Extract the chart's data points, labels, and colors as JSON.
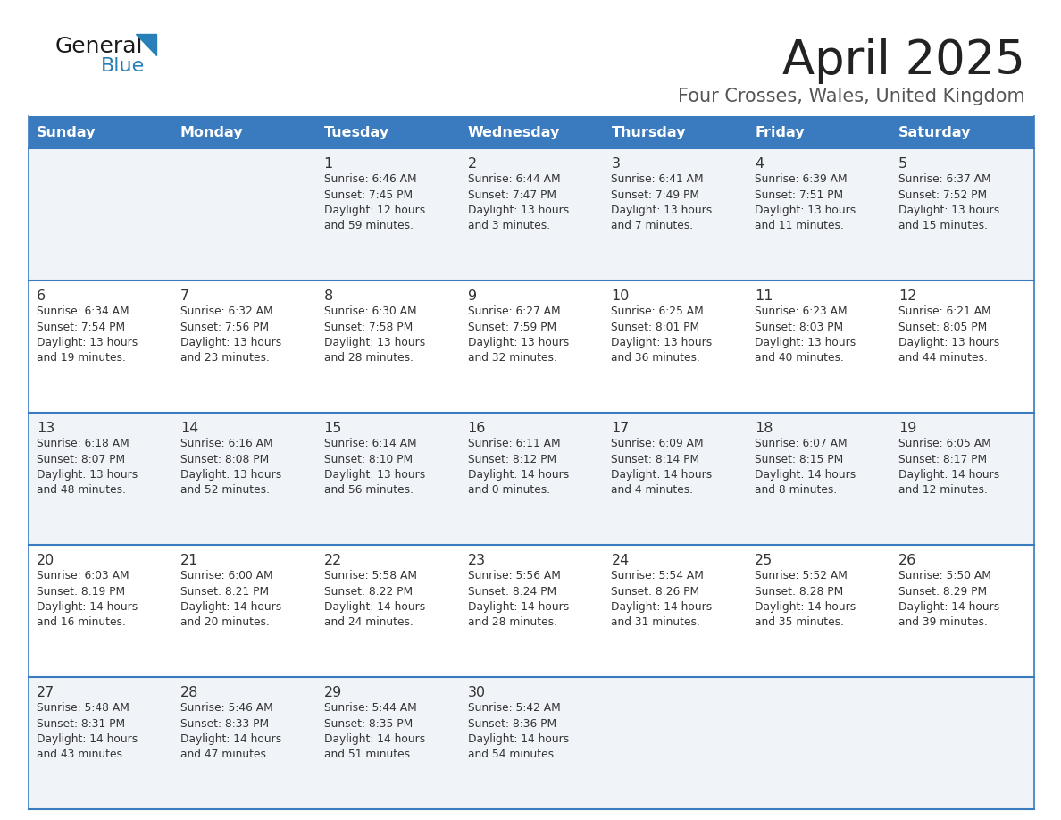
{
  "title": "April 2025",
  "subtitle": "Four Crosses, Wales, United Kingdom",
  "days_of_week": [
    "Sunday",
    "Monday",
    "Tuesday",
    "Wednesday",
    "Thursday",
    "Friday",
    "Saturday"
  ],
  "header_bg": "#3a7abf",
  "header_text_color": "#FFFFFF",
  "cell_bg_light": "#f0f4f8",
  "cell_bg_white": "#FFFFFF",
  "border_color": "#3a7abf",
  "text_color": "#333333",
  "title_color": "#222222",
  "subtitle_color": "#555555",
  "logo_black": "#1a1a1a",
  "logo_blue": "#2980B9",
  "calendar": [
    [
      {
        "day": "",
        "sunrise": "",
        "sunset": "",
        "daylight": ""
      },
      {
        "day": "",
        "sunrise": "",
        "sunset": "",
        "daylight": ""
      },
      {
        "day": "1",
        "sunrise": "Sunrise: 6:46 AM",
        "sunset": "Sunset: 7:45 PM",
        "daylight": "Daylight: 12 hours\nand 59 minutes."
      },
      {
        "day": "2",
        "sunrise": "Sunrise: 6:44 AM",
        "sunset": "Sunset: 7:47 PM",
        "daylight": "Daylight: 13 hours\nand 3 minutes."
      },
      {
        "day": "3",
        "sunrise": "Sunrise: 6:41 AM",
        "sunset": "Sunset: 7:49 PM",
        "daylight": "Daylight: 13 hours\nand 7 minutes."
      },
      {
        "day": "4",
        "sunrise": "Sunrise: 6:39 AM",
        "sunset": "Sunset: 7:51 PM",
        "daylight": "Daylight: 13 hours\nand 11 minutes."
      },
      {
        "day": "5",
        "sunrise": "Sunrise: 6:37 AM",
        "sunset": "Sunset: 7:52 PM",
        "daylight": "Daylight: 13 hours\nand 15 minutes."
      }
    ],
    [
      {
        "day": "6",
        "sunrise": "Sunrise: 6:34 AM",
        "sunset": "Sunset: 7:54 PM",
        "daylight": "Daylight: 13 hours\nand 19 minutes."
      },
      {
        "day": "7",
        "sunrise": "Sunrise: 6:32 AM",
        "sunset": "Sunset: 7:56 PM",
        "daylight": "Daylight: 13 hours\nand 23 minutes."
      },
      {
        "day": "8",
        "sunrise": "Sunrise: 6:30 AM",
        "sunset": "Sunset: 7:58 PM",
        "daylight": "Daylight: 13 hours\nand 28 minutes."
      },
      {
        "day": "9",
        "sunrise": "Sunrise: 6:27 AM",
        "sunset": "Sunset: 7:59 PM",
        "daylight": "Daylight: 13 hours\nand 32 minutes."
      },
      {
        "day": "10",
        "sunrise": "Sunrise: 6:25 AM",
        "sunset": "Sunset: 8:01 PM",
        "daylight": "Daylight: 13 hours\nand 36 minutes."
      },
      {
        "day": "11",
        "sunrise": "Sunrise: 6:23 AM",
        "sunset": "Sunset: 8:03 PM",
        "daylight": "Daylight: 13 hours\nand 40 minutes."
      },
      {
        "day": "12",
        "sunrise": "Sunrise: 6:21 AM",
        "sunset": "Sunset: 8:05 PM",
        "daylight": "Daylight: 13 hours\nand 44 minutes."
      }
    ],
    [
      {
        "day": "13",
        "sunrise": "Sunrise: 6:18 AM",
        "sunset": "Sunset: 8:07 PM",
        "daylight": "Daylight: 13 hours\nand 48 minutes."
      },
      {
        "day": "14",
        "sunrise": "Sunrise: 6:16 AM",
        "sunset": "Sunset: 8:08 PM",
        "daylight": "Daylight: 13 hours\nand 52 minutes."
      },
      {
        "day": "15",
        "sunrise": "Sunrise: 6:14 AM",
        "sunset": "Sunset: 8:10 PM",
        "daylight": "Daylight: 13 hours\nand 56 minutes."
      },
      {
        "day": "16",
        "sunrise": "Sunrise: 6:11 AM",
        "sunset": "Sunset: 8:12 PM",
        "daylight": "Daylight: 14 hours\nand 0 minutes."
      },
      {
        "day": "17",
        "sunrise": "Sunrise: 6:09 AM",
        "sunset": "Sunset: 8:14 PM",
        "daylight": "Daylight: 14 hours\nand 4 minutes."
      },
      {
        "day": "18",
        "sunrise": "Sunrise: 6:07 AM",
        "sunset": "Sunset: 8:15 PM",
        "daylight": "Daylight: 14 hours\nand 8 minutes."
      },
      {
        "day": "19",
        "sunrise": "Sunrise: 6:05 AM",
        "sunset": "Sunset: 8:17 PM",
        "daylight": "Daylight: 14 hours\nand 12 minutes."
      }
    ],
    [
      {
        "day": "20",
        "sunrise": "Sunrise: 6:03 AM",
        "sunset": "Sunset: 8:19 PM",
        "daylight": "Daylight: 14 hours\nand 16 minutes."
      },
      {
        "day": "21",
        "sunrise": "Sunrise: 6:00 AM",
        "sunset": "Sunset: 8:21 PM",
        "daylight": "Daylight: 14 hours\nand 20 minutes."
      },
      {
        "day": "22",
        "sunrise": "Sunrise: 5:58 AM",
        "sunset": "Sunset: 8:22 PM",
        "daylight": "Daylight: 14 hours\nand 24 minutes."
      },
      {
        "day": "23",
        "sunrise": "Sunrise: 5:56 AM",
        "sunset": "Sunset: 8:24 PM",
        "daylight": "Daylight: 14 hours\nand 28 minutes."
      },
      {
        "day": "24",
        "sunrise": "Sunrise: 5:54 AM",
        "sunset": "Sunset: 8:26 PM",
        "daylight": "Daylight: 14 hours\nand 31 minutes."
      },
      {
        "day": "25",
        "sunrise": "Sunrise: 5:52 AM",
        "sunset": "Sunset: 8:28 PM",
        "daylight": "Daylight: 14 hours\nand 35 minutes."
      },
      {
        "day": "26",
        "sunrise": "Sunrise: 5:50 AM",
        "sunset": "Sunset: 8:29 PM",
        "daylight": "Daylight: 14 hours\nand 39 minutes."
      }
    ],
    [
      {
        "day": "27",
        "sunrise": "Sunrise: 5:48 AM",
        "sunset": "Sunset: 8:31 PM",
        "daylight": "Daylight: 14 hours\nand 43 minutes."
      },
      {
        "day": "28",
        "sunrise": "Sunrise: 5:46 AM",
        "sunset": "Sunset: 8:33 PM",
        "daylight": "Daylight: 14 hours\nand 47 minutes."
      },
      {
        "day": "29",
        "sunrise": "Sunrise: 5:44 AM",
        "sunset": "Sunset: 8:35 PM",
        "daylight": "Daylight: 14 hours\nand 51 minutes."
      },
      {
        "day": "30",
        "sunrise": "Sunrise: 5:42 AM",
        "sunset": "Sunset: 8:36 PM",
        "daylight": "Daylight: 14 hours\nand 54 minutes."
      },
      {
        "day": "",
        "sunrise": "",
        "sunset": "",
        "daylight": ""
      },
      {
        "day": "",
        "sunrise": "",
        "sunset": "",
        "daylight": ""
      },
      {
        "day": "",
        "sunrise": "",
        "sunset": "",
        "daylight": ""
      }
    ]
  ]
}
